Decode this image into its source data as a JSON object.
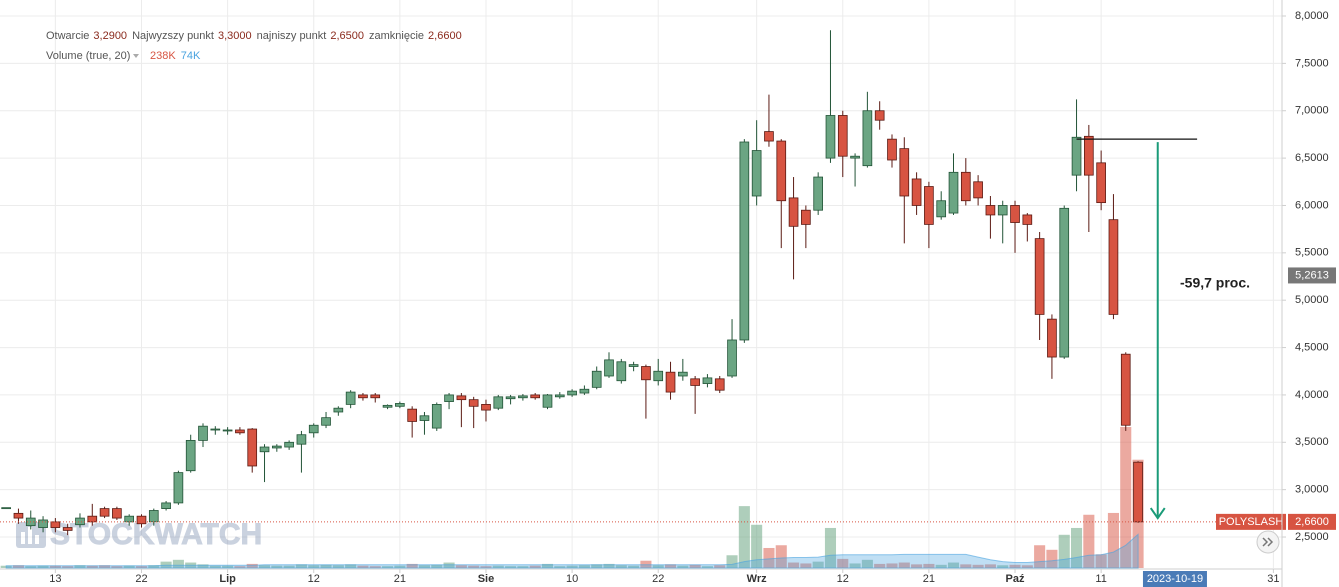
{
  "chart_data": {
    "type": "candlestick",
    "hover_legend": [
      {
        "name": "Otwarcie",
        "label": "3,2900"
      },
      {
        "name": "Najwyzszy punkt",
        "label": "3,3000"
      },
      {
        "name": "najniszy punkt",
        "label": "2,6500"
      },
      {
        "name": "zamknięcie",
        "label": "2,6600"
      }
    ],
    "watermark": "STOCKWATCH",
    "up_color": "#6ba583",
    "down_color": "#d75442",
    "candles": {
      "open": [
        2.81,
        2.75,
        2.62,
        2.6,
        2.66,
        2.6,
        2.63,
        2.72,
        2.8,
        2.8,
        2.66,
        2.72,
        2.66,
        2.8,
        2.86,
        3.2,
        3.52,
        3.63,
        3.62,
        3.63,
        3.64,
        3.4,
        3.44,
        3.45,
        3.48,
        3.6,
        3.68,
        3.82,
        3.9,
        4.0,
        4.0,
        3.87,
        3.88,
        3.85,
        3.73,
        3.65,
        3.93,
        3.99,
        3.95,
        3.9,
        3.86,
        3.96,
        3.97,
        4.0,
        3.87,
        3.98,
        4.0,
        4.02,
        4.08,
        4.2,
        4.15,
        4.3,
        4.3,
        4.15,
        4.24,
        4.2,
        4.17,
        4.12,
        4.17,
        4.2,
        4.58,
        6.1,
        6.78,
        6.68,
        6.08,
        5.95,
        5.95,
        6.5,
        6.95,
        6.5,
        6.42,
        7.0,
        6.7,
        6.6,
        6.28,
        6.2,
        5.88,
        5.92,
        6.35,
        6.25,
        6.0,
        5.9,
        6.0,
        5.9,
        5.65,
        4.8,
        4.4,
        6.32,
        6.73,
        6.45,
        5.85,
        4.43,
        3.29
      ],
      "high": [
        2.81,
        2.8,
        2.78,
        2.72,
        2.7,
        2.64,
        2.75,
        2.85,
        2.82,
        2.82,
        2.74,
        2.74,
        2.8,
        2.88,
        3.2,
        3.58,
        3.7,
        3.67,
        3.66,
        3.66,
        3.65,
        3.48,
        3.48,
        3.52,
        3.62,
        3.7,
        3.82,
        3.88,
        4.05,
        4.02,
        4.02,
        3.9,
        3.93,
        3.88,
        3.82,
        3.92,
        4.02,
        4.02,
        3.98,
        3.95,
        4.0,
        4.0,
        4.01,
        4.02,
        4.01,
        4.03,
        4.06,
        4.1,
        4.3,
        4.45,
        4.38,
        4.35,
        4.32,
        4.38,
        4.35,
        4.38,
        4.2,
        4.22,
        4.2,
        4.8,
        6.7,
        6.9,
        7.17,
        6.7,
        6.3,
        6.0,
        6.35,
        7.85,
        7.0,
        6.55,
        7.2,
        7.1,
        6.75,
        6.72,
        6.35,
        6.25,
        6.15,
        6.55,
        6.5,
        6.32,
        6.1,
        6.05,
        6.05,
        5.92,
        5.72,
        4.85,
        6.0,
        7.12,
        6.85,
        6.58,
        6.12,
        4.45,
        3.3
      ],
      "low": [
        2.81,
        2.64,
        2.58,
        2.55,
        2.55,
        2.52,
        2.6,
        2.62,
        2.7,
        2.68,
        2.62,
        2.6,
        2.62,
        2.78,
        2.84,
        3.18,
        3.45,
        3.58,
        3.58,
        3.58,
        3.18,
        3.08,
        3.4,
        3.42,
        3.18,
        3.55,
        3.65,
        3.78,
        3.86,
        3.94,
        3.92,
        3.85,
        3.86,
        3.55,
        3.58,
        3.62,
        3.85,
        3.66,
        3.65,
        3.72,
        3.84,
        3.9,
        3.94,
        3.95,
        3.85,
        3.96,
        3.98,
        4.0,
        4.06,
        4.18,
        4.12,
        4.25,
        3.75,
        4.1,
        3.95,
        4.15,
        3.8,
        4.08,
        4.02,
        4.18,
        4.55,
        6.0,
        6.62,
        5.55,
        5.22,
        5.55,
        5.9,
        6.45,
        6.3,
        6.2,
        6.4,
        6.8,
        6.4,
        5.6,
        5.9,
        5.55,
        5.85,
        5.9,
        6.0,
        6.0,
        5.65,
        5.6,
        5.5,
        5.62,
        4.58,
        4.17,
        4.38,
        6.15,
        5.72,
        5.95,
        4.8,
        3.62,
        2.65
      ],
      "close": [
        2.81,
        2.7,
        2.7,
        2.68,
        2.6,
        2.57,
        2.7,
        2.66,
        2.72,
        2.7,
        2.72,
        2.64,
        2.78,
        2.86,
        3.18,
        3.52,
        3.67,
        3.64,
        3.63,
        3.6,
        3.25,
        3.45,
        3.46,
        3.5,
        3.58,
        3.68,
        3.76,
        3.86,
        4.03,
        3.97,
        3.97,
        3.89,
        3.91,
        3.72,
        3.78,
        3.9,
        4.0,
        3.95,
        3.88,
        3.84,
        3.98,
        3.98,
        3.99,
        3.97,
        4.0,
        4.0,
        4.04,
        4.06,
        4.25,
        4.37,
        4.35,
        4.32,
        4.16,
        4.25,
        4.03,
        4.24,
        4.1,
        4.18,
        4.05,
        4.58,
        6.67,
        6.58,
        6.68,
        6.05,
        5.78,
        5.8,
        6.3,
        6.95,
        6.52,
        6.52,
        7.0,
        6.9,
        6.48,
        6.1,
        6.0,
        5.8,
        6.05,
        6.35,
        6.05,
        6.08,
        5.9,
        6.0,
        5.82,
        5.8,
        4.85,
        4.4,
        5.97,
        6.72,
        6.32,
        6.03,
        4.85,
        3.68,
        2.66
      ]
    },
    "volume": {
      "name": "Volume (true, 20)",
      "values": [
        5,
        6,
        4,
        5,
        5,
        4,
        6,
        5,
        6,
        4,
        5,
        4,
        6,
        14,
        18,
        12,
        8,
        5,
        5,
        4,
        9,
        6,
        5,
        5,
        8,
        6,
        7,
        6,
        8,
        5,
        4,
        4,
        5,
        9,
        6,
        7,
        12,
        6,
        5,
        4,
        5,
        4,
        4,
        5,
        9,
        4,
        5,
        6,
        8,
        9,
        6,
        5,
        16,
        6,
        8,
        5,
        7,
        4,
        6,
        28,
        136,
        95,
        44,
        50,
        12,
        10,
        14,
        88,
        20,
        10,
        18,
        9,
        10,
        12,
        8,
        9,
        7,
        12,
        8,
        7,
        8,
        6,
        7,
        6,
        50,
        40,
        73,
        88,
        117,
        30,
        121,
        310,
        238
      ],
      "value_label": "238K",
      "ma": {
        "values": [
          5,
          5,
          5,
          5,
          5,
          5,
          5,
          5,
          5,
          5,
          5,
          5,
          5,
          6,
          6,
          6,
          6,
          6,
          6,
          6,
          6,
          7,
          7,
          7,
          7,
          7,
          7,
          7,
          7,
          7,
          7,
          7,
          7,
          7,
          7,
          7,
          7,
          7,
          7,
          7,
          7,
          7,
          7,
          7,
          7,
          7,
          7,
          7,
          7,
          7,
          7,
          7,
          7,
          7,
          7,
          7,
          7,
          7,
          7,
          8,
          14,
          18,
          20,
          22,
          23,
          23,
          24,
          28,
          29,
          29,
          29,
          29,
          29,
          30,
          30,
          30,
          30,
          30,
          30,
          24,
          18,
          14,
          12,
          12,
          14,
          16,
          19,
          23,
          28,
          29,
          35,
          50,
          74
        ],
        "value_label": "74K",
        "color": "#4aa3df"
      }
    },
    "last_price": {
      "name": "POLYSLASH",
      "value": 2.66,
      "label": "2,6600",
      "color": "#d75442"
    },
    "crosshair_price": {
      "value": 5.2613,
      "label": "5,2613"
    },
    "crosshair_date": {
      "value": 95,
      "label": "2023-10-19"
    },
    "annotation": {
      "text": "-59,7 proc.",
      "from": 6.7,
      "to": 2.7,
      "color": "#1a9b78"
    },
    "xlim": [
      -0.5,
      103.7
    ],
    "xticks": [
      {
        "value": 4,
        "label": "13"
      },
      {
        "value": 11,
        "label": "22"
      },
      {
        "value": 18,
        "label": "Lip"
      },
      {
        "value": 25,
        "label": "12"
      },
      {
        "value": 32,
        "label": "21"
      },
      {
        "value": 39,
        "label": "Sie"
      },
      {
        "value": 46,
        "label": "10"
      },
      {
        "value": 53,
        "label": "22"
      },
      {
        "value": 61,
        "label": "Wrz"
      },
      {
        "value": 68,
        "label": "12"
      },
      {
        "value": 75,
        "label": "21"
      },
      {
        "value": 82,
        "label": "Paź"
      },
      {
        "value": 89,
        "label": "11"
      },
      {
        "value": 103,
        "label": "31"
      }
    ],
    "ylim": [
      2.173,
      8.169
    ],
    "yticks": [
      {
        "value": 2.5,
        "label": "2,5000"
      },
      {
        "value": 3.0,
        "label": "3,0000"
      },
      {
        "value": 3.5,
        "label": "3,5000"
      },
      {
        "value": 4.0,
        "label": "4,0000"
      },
      {
        "value": 4.5,
        "label": "4,5000"
      },
      {
        "value": 5.0,
        "label": "5,0000"
      },
      {
        "value": 5.5,
        "label": "5,5000"
      },
      {
        "value": 6.0,
        "label": "6,0000"
      },
      {
        "value": 6.5,
        "label": "6,5000"
      },
      {
        "value": 7.0,
        "label": "7,0000"
      },
      {
        "value": 7.5,
        "label": "7,5000"
      },
      {
        "value": 8.0,
        "label": "8,0000"
      }
    ],
    "grid": true
  }
}
